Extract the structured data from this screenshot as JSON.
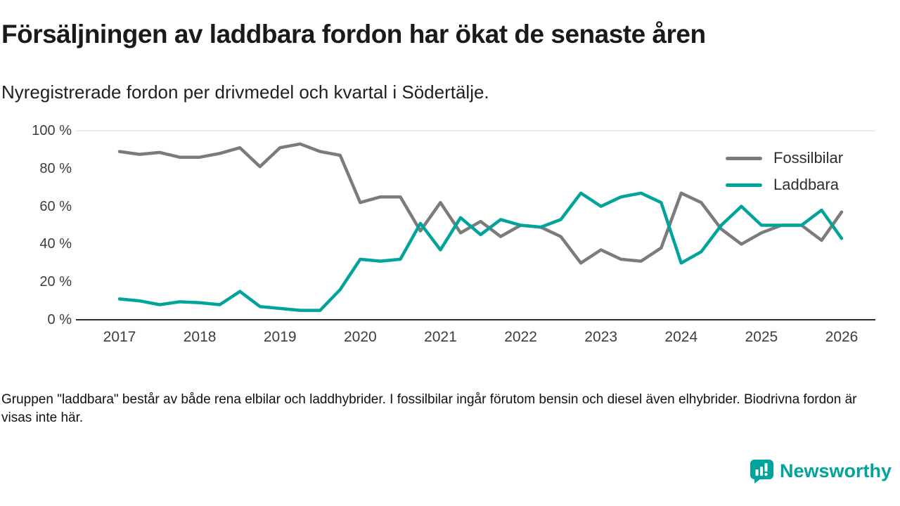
{
  "title": "Försäljningen av laddbara fordon har ökat de senaste åren",
  "subtitle": "Nyregistrerade fordon per drivmedel och kvartal i Södertälje.",
  "footnote": "Gruppen \"laddbara\" består av både rena elbilar och laddhybrider. I fossilbilar ingår förutom bensin och diesel även elhybrider. Biodrivna fordon är visas inte här.",
  "logo": {
    "text": "Newsworthy"
  },
  "colors": {
    "brand_teal": "#00a49c",
    "fossil_gray": "#7b7b7b",
    "axis_line": "#2b2b2b",
    "gridline": "#d9d9d9",
    "text_dark": "#1a1a1a"
  },
  "chart_data": {
    "type": "line",
    "title": "Försäljningen av laddbara fordon har ökat de senaste åren",
    "subtitle": "Nyregistrerade fordon per drivmedel och kvartal i Södertälje.",
    "x_unit": "quarter",
    "x_start": "2017 Q1",
    "x_end": "2026 Q1",
    "xticks": [
      "2017",
      "2018",
      "2019",
      "2020",
      "2021",
      "2022",
      "2023",
      "2024",
      "2025",
      "2026"
    ],
    "yticks": [
      "100 %",
      "80 %",
      "60 %",
      "40 %",
      "20 %",
      "0 %"
    ],
    "ylim": [
      0,
      100
    ],
    "grid": "top-line-only",
    "legend_position": "top-right",
    "legend": [
      "Fossilbilar",
      "Laddbara"
    ],
    "series": [
      {
        "name": "Fossilbilar",
        "color": "#7b7b7b",
        "values": [
          89,
          87.5,
          88.5,
          86,
          86,
          88,
          91,
          81,
          91,
          93,
          89,
          87,
          62,
          65,
          65,
          47,
          62,
          46,
          52,
          44,
          50,
          49,
          44,
          30,
          37,
          32,
          31,
          38,
          67,
          62,
          48,
          40,
          46,
          50,
          50,
          42,
          57
        ]
      },
      {
        "name": "Laddbara",
        "color": "#00a49c",
        "values": [
          11,
          10,
          8,
          9.5,
          9,
          8,
          15,
          7,
          6,
          5,
          5,
          16,
          32,
          31,
          32,
          51,
          37,
          54,
          45,
          53,
          50,
          49,
          53,
          67,
          60,
          65,
          67,
          62,
          30,
          36,
          50,
          60,
          50,
          50,
          50,
          58,
          43
        ]
      }
    ]
  }
}
